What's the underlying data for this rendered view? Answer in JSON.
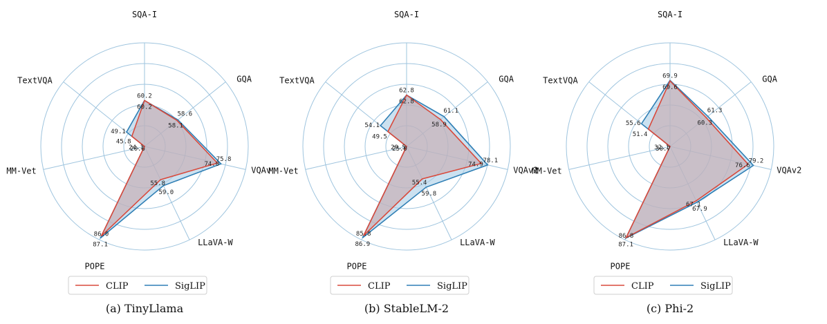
{
  "chart_data": [
    {
      "type": "radar",
      "caption": "(a) TinyLlama",
      "axes": [
        "SQA-I",
        "GQA",
        "VQAv2",
        "LLaVA-W",
        "POPE",
        "MM-Vet",
        "TextVQA"
      ],
      "axis_labels_shown": [
        "SQA-I",
        "GQA",
        "VQAv",
        "LLaVA-W",
        "POPE",
        "MM-Vet",
        "TextVQA"
      ],
      "series": [
        {
          "name": "CLIP",
          "color": "#d9493b",
          "values": [
            60.2,
            58.1,
            74.0,
            55.8,
            86.0,
            20.6,
            45.8
          ]
        },
        {
          "name": "SigLIP",
          "color": "#2f7fb5",
          "values": [
            60.2,
            58.6,
            75.8,
            59.0,
            87.1,
            24.1,
            49.1
          ]
        }
      ],
      "value_labels": {
        "CLIP": [
          "60.2",
          "58.1",
          "74.0",
          "55.8",
          "86.0",
          "20.6",
          "45.8"
        ],
        "SigLIP": [
          "60.2",
          "58.6",
          "75.8",
          "59.0",
          "87.1",
          "24.1",
          "49.1"
        ]
      }
    },
    {
      "type": "radar",
      "caption": "(b) StableLM-2",
      "axes": [
        "SQA-I",
        "GQA",
        "VQAv2",
        "LLaVA-W",
        "POPE",
        "MM-Vet",
        "TextVQA"
      ],
      "axis_labels_shown": [
        "SQA-I",
        "GQA",
        "VQAv2",
        "LLaVA-W",
        "POPE",
        "MM-Vet",
        "TextVQA"
      ],
      "series": [
        {
          "name": "CLIP",
          "color": "#d9493b",
          "values": [
            62.8,
            58.9,
            74.9,
            55.4,
            85.8,
            25.0,
            49.5
          ]
        },
        {
          "name": "SigLIP",
          "color": "#2f7fb5",
          "values": [
            62.8,
            61.1,
            78.1,
            59.8,
            86.9,
            29.5,
            54.1
          ]
        }
      ],
      "value_labels": {
        "CLIP": [
          "62.8",
          "58.9",
          "74.9",
          "55.4",
          "85.8",
          "25.0",
          "49.5"
        ],
        "SigLIP": [
          "62.8",
          "61.1",
          "78.1",
          "59.8",
          "86.9",
          "29.5",
          "54.1"
        ]
      }
    },
    {
      "type": "radar",
      "caption": "(c) Phi-2",
      "axes": [
        "SQA-I",
        "GQA",
        "VQAv2",
        "LLaVA-W",
        "POPE",
        "MM-Vet",
        "TextVQA"
      ],
      "axis_labels_shown": [
        "SQA-I",
        "GQA",
        "VQAv2",
        "LLaVA-W",
        "POPE",
        "MM-Vet",
        "TextVQA"
      ],
      "series": [
        {
          "name": "CLIP",
          "color": "#d9493b",
          "values": [
            69.6,
            60.3,
            76.6,
            67.1,
            86.8,
            30.7,
            51.4
          ]
        },
        {
          "name": "SigLIP",
          "color": "#2f7fb5",
          "values": [
            69.9,
            61.3,
            79.2,
            67.9,
            87.1,
            32.1,
            55.6
          ]
        }
      ],
      "value_labels": {
        "CLIP": [
          "69.6",
          "60.3",
          "76.6",
          "67.1",
          "86.8",
          "30.7",
          "51.4"
        ],
        "SigLIP": [
          "69.9",
          "61.3",
          "79.2",
          "67.9",
          "87.1",
          "32.1",
          "55.6"
        ]
      }
    }
  ],
  "legend": {
    "items": [
      "CLIP",
      "SigLIP"
    ]
  },
  "colors": {
    "clip": "#d9493b",
    "siglip": "#2f7fb5",
    "siglip_fill": "#a9cde6",
    "clip_fill": "#c9a4a8",
    "grid": "#9ec4de"
  }
}
